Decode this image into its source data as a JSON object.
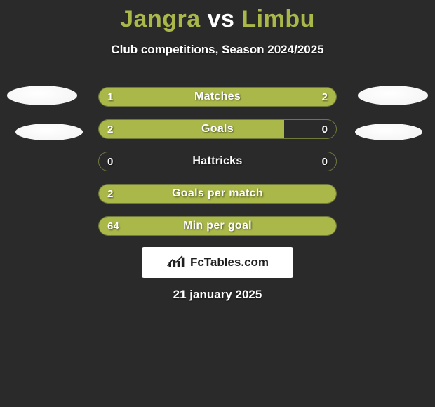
{
  "title": {
    "player1": "Jangra",
    "vs": "vs",
    "player2": "Limbu",
    "fontsize": 34,
    "color_players": "#aab84a",
    "color_vs": "#ffffff"
  },
  "subtitle": "Club competitions, Season 2024/2025",
  "background_color": "#2b2a2a",
  "bar_color": "#aab84a",
  "bar_border_color": "rgba(170,184,74,0.55)",
  "text_color": "#ffffff",
  "bars": [
    {
      "label": "Matches",
      "left_value": "1",
      "right_value": "2",
      "left_fill_pct": 31,
      "right_fill_pct": 69
    },
    {
      "label": "Goals",
      "left_value": "2",
      "right_value": "0",
      "left_fill_pct": 78,
      "right_fill_pct": 0
    },
    {
      "label": "Hattricks",
      "left_value": "0",
      "right_value": "0",
      "left_fill_pct": 0,
      "right_fill_pct": 0
    },
    {
      "label": "Goals per match",
      "left_value": "2",
      "right_value": "",
      "left_fill_pct": 100,
      "right_fill_pct": 0
    },
    {
      "label": "Min per goal",
      "left_value": "64",
      "right_value": "",
      "left_fill_pct": 100,
      "right_fill_pct": 0
    }
  ],
  "logo_text": "FcTables.com",
  "date": "21 january 2025",
  "avatars": {
    "fill": "#ffffff"
  }
}
